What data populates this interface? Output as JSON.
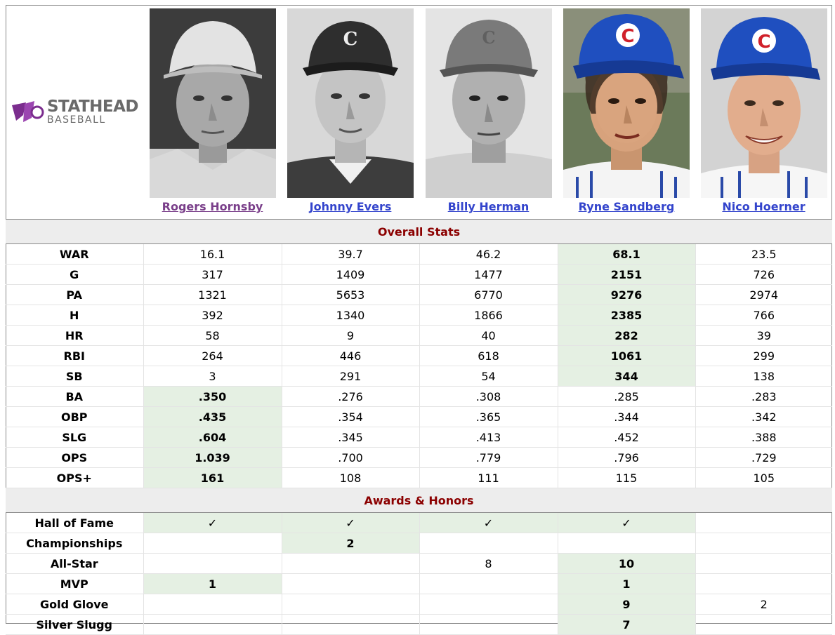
{
  "brand": {
    "name_top": "STATHEAD",
    "name_bottom": "BASEBALL",
    "color": "#7b2d8e"
  },
  "players": [
    {
      "name": "Rogers Hornsby",
      "visited": true,
      "cap_logo": ""
    },
    {
      "name": "Johnny Evers",
      "visited": false,
      "cap_logo": "C"
    },
    {
      "name": "Billy Herman",
      "visited": false,
      "cap_logo": "C"
    },
    {
      "name": "Ryne Sandberg",
      "visited": false,
      "cap_logo": "C"
    },
    {
      "name": "Nico Hoerner",
      "visited": false,
      "cap_logo": "C"
    }
  ],
  "sections": {
    "overall": "Overall Stats",
    "awards": "Awards & Honors"
  },
  "stats": [
    {
      "label": "WAR",
      "values": [
        "16.1",
        "39.7",
        "46.2",
        "68.1",
        "23.5"
      ],
      "best": [
        3
      ]
    },
    {
      "label": "G",
      "values": [
        "317",
        "1409",
        "1477",
        "2151",
        "726"
      ],
      "best": [
        3
      ]
    },
    {
      "label": "PA",
      "values": [
        "1321",
        "5653",
        "6770",
        "9276",
        "2974"
      ],
      "best": [
        3
      ]
    },
    {
      "label": "H",
      "values": [
        "392",
        "1340",
        "1866",
        "2385",
        "766"
      ],
      "best": [
        3
      ]
    },
    {
      "label": "HR",
      "values": [
        "58",
        "9",
        "40",
        "282",
        "39"
      ],
      "best": [
        3
      ]
    },
    {
      "label": "RBI",
      "values": [
        "264",
        "446",
        "618",
        "1061",
        "299"
      ],
      "best": [
        3
      ]
    },
    {
      "label": "SB",
      "values": [
        "3",
        "291",
        "54",
        "344",
        "138"
      ],
      "best": [
        3
      ]
    },
    {
      "label": "BA",
      "values": [
        ".350",
        ".276",
        ".308",
        ".285",
        ".283"
      ],
      "best": [
        0
      ]
    },
    {
      "label": "OBP",
      "values": [
        ".435",
        ".354",
        ".365",
        ".344",
        ".342"
      ],
      "best": [
        0
      ]
    },
    {
      "label": "SLG",
      "values": [
        ".604",
        ".345",
        ".413",
        ".452",
        ".388"
      ],
      "best": [
        0
      ]
    },
    {
      "label": "OPS",
      "values": [
        "1.039",
        ".700",
        ".779",
        ".796",
        ".729"
      ],
      "best": [
        0
      ]
    },
    {
      "label": "OPS+",
      "values": [
        "161",
        "108",
        "111",
        "115",
        "105"
      ],
      "best": [
        0
      ]
    }
  ],
  "awards": [
    {
      "label": "Hall of Fame",
      "values": [
        "✓",
        "✓",
        "✓",
        "✓",
        ""
      ],
      "best": [
        0,
        1,
        2,
        3
      ]
    },
    {
      "label": "Championships",
      "values": [
        "",
        "2",
        "",
        "",
        ""
      ],
      "best": [
        1
      ]
    },
    {
      "label": "All-Star",
      "values": [
        "",
        "",
        "8",
        "10",
        ""
      ],
      "best": [
        3
      ]
    },
    {
      "label": "MVP",
      "values": [
        "1",
        "",
        "",
        "1",
        ""
      ],
      "best": [
        0,
        3
      ]
    },
    {
      "label": "Gold Glove",
      "values": [
        "",
        "",
        "",
        "9",
        "2"
      ],
      "best": [
        3
      ]
    },
    {
      "label": "Silver Slugg",
      "values": [
        "",
        "",
        "",
        "7",
        ""
      ],
      "best": [
        3
      ]
    }
  ],
  "colors": {
    "highlight": "#e5f0e3",
    "section_text": "#8b0000",
    "link": "#3344cc",
    "link_visited": "#7a3f8a"
  }
}
